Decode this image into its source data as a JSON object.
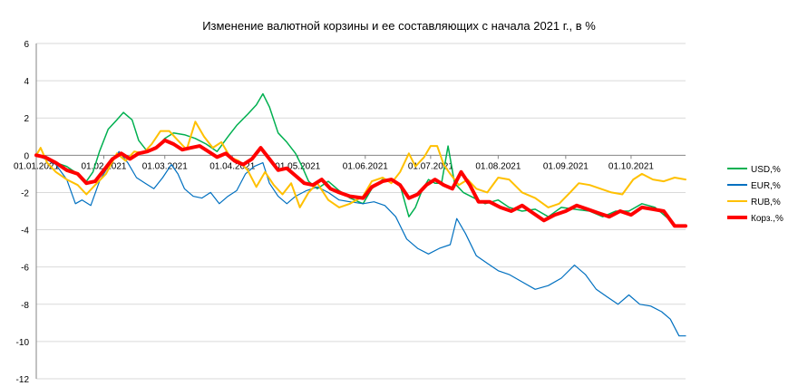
{
  "chart_data": {
    "type": "line",
    "title": "Изменение  валютной корзины и ее составляющих  с начала 2021 г., в %",
    "xlabel": "",
    "ylabel": "",
    "ylim": [
      -12,
      6
    ],
    "xlim": [
      "2021-01-01",
      "2021-10-26"
    ],
    "y_ticks": [
      6,
      4,
      2,
      0,
      -2,
      -4,
      -6,
      -8,
      -10,
      -12
    ],
    "x_ticks": [
      "01.01.2021",
      "01.02.2021",
      "01.03.2021",
      "01.04.2021",
      "01.05.2021",
      "01.06.2021",
      "01.07.2021",
      "01.08.2021",
      "01.09.2021",
      "01.10.2021"
    ],
    "x_tick_dates": [
      "2021-01-01",
      "2021-02-01",
      "2021-03-01",
      "2021-04-01",
      "2021-05-01",
      "2021-06-01",
      "2021-07-01",
      "2021-08-01",
      "2021-09-01",
      "2021-10-01"
    ],
    "grid": "horizontal",
    "legend_position": "right",
    "series": [
      {
        "name": "USD,%",
        "color": "#00B050",
        "points": [
          [
            "2021-01-01",
            0
          ],
          [
            "2021-01-05",
            -0.1
          ],
          [
            "2021-01-10",
            -0.4
          ],
          [
            "2021-01-15",
            -0.6
          ],
          [
            "2021-01-20",
            -1.0
          ],
          [
            "2021-01-24",
            -1.4
          ],
          [
            "2021-01-27",
            -0.9
          ],
          [
            "2021-01-30",
            0.2
          ],
          [
            "2021-02-03",
            1.4
          ],
          [
            "2021-02-07",
            1.9
          ],
          [
            "2021-02-10",
            2.3
          ],
          [
            "2021-02-14",
            1.9
          ],
          [
            "2021-02-17",
            0.8
          ],
          [
            "2021-02-21",
            0.2
          ],
          [
            "2021-02-25",
            0.4
          ],
          [
            "2021-03-01",
            0.9
          ],
          [
            "2021-03-05",
            1.2
          ],
          [
            "2021-03-10",
            1.1
          ],
          [
            "2021-03-15",
            0.9
          ],
          [
            "2021-03-20",
            0.6
          ],
          [
            "2021-03-25",
            0.2
          ],
          [
            "2021-03-30",
            1.0
          ],
          [
            "2021-04-03",
            1.6
          ],
          [
            "2021-04-08",
            2.2
          ],
          [
            "2021-04-12",
            2.7
          ],
          [
            "2021-04-15",
            3.3
          ],
          [
            "2021-04-18",
            2.6
          ],
          [
            "2021-04-22",
            1.2
          ],
          [
            "2021-04-26",
            0.7
          ],
          [
            "2021-04-30",
            0.1
          ],
          [
            "2021-05-03",
            -0.6
          ],
          [
            "2021-05-06",
            -1.4
          ],
          [
            "2021-05-10",
            -1.8
          ],
          [
            "2021-05-15",
            -1.4
          ],
          [
            "2021-05-20",
            -1.9
          ],
          [
            "2021-05-25",
            -2.3
          ],
          [
            "2021-05-31",
            -2.6
          ],
          [
            "2021-06-04",
            -1.8
          ],
          [
            "2021-06-09",
            -1.3
          ],
          [
            "2021-06-13",
            -1.3
          ],
          [
            "2021-06-17",
            -1.6
          ],
          [
            "2021-06-21",
            -3.3
          ],
          [
            "2021-06-24",
            -2.8
          ],
          [
            "2021-06-27",
            -1.9
          ],
          [
            "2021-06-30",
            -1.3
          ],
          [
            "2021-07-03",
            -1.5
          ],
          [
            "2021-07-06",
            -1.5
          ],
          [
            "2021-07-09",
            0.5
          ],
          [
            "2021-07-12",
            -1.5
          ],
          [
            "2021-07-16",
            -2.0
          ],
          [
            "2021-07-21",
            -2.3
          ],
          [
            "2021-07-26",
            -2.6
          ],
          [
            "2021-08-01",
            -2.4
          ],
          [
            "2021-08-06",
            -2.8
          ],
          [
            "2021-08-12",
            -3.0
          ],
          [
            "2021-08-18",
            -2.9
          ],
          [
            "2021-08-24",
            -3.3
          ],
          [
            "2021-08-30",
            -2.8
          ],
          [
            "2021-09-05",
            -2.9
          ],
          [
            "2021-09-12",
            -3.0
          ],
          [
            "2021-09-18",
            -3.3
          ],
          [
            "2021-09-24",
            -3.0
          ],
          [
            "2021-09-30",
            -3.0
          ],
          [
            "2021-10-06",
            -2.6
          ],
          [
            "2021-10-12",
            -2.8
          ],
          [
            "2021-10-18",
            -3.4
          ],
          [
            "2021-10-21",
            -3.8
          ],
          [
            "2021-10-26",
            -3.8
          ]
        ]
      },
      {
        "name": "EUR,%",
        "color": "#0070C0",
        "points": [
          [
            "2021-01-01",
            0
          ],
          [
            "2021-01-05",
            -0.2
          ],
          [
            "2021-01-10",
            -0.5
          ],
          [
            "2021-01-15",
            -1.3
          ],
          [
            "2021-01-19",
            -2.6
          ],
          [
            "2021-01-22",
            -2.4
          ],
          [
            "2021-01-26",
            -2.7
          ],
          [
            "2021-01-30",
            -1.4
          ],
          [
            "2021-02-04",
            -0.4
          ],
          [
            "2021-02-08",
            0.2
          ],
          [
            "2021-02-12",
            -0.4
          ],
          [
            "2021-02-16",
            -1.2
          ],
          [
            "2021-02-20",
            -1.5
          ],
          [
            "2021-02-24",
            -1.8
          ],
          [
            "2021-02-28",
            -1.2
          ],
          [
            "2021-03-04",
            -0.5
          ],
          [
            "2021-03-07",
            -1.0
          ],
          [
            "2021-03-10",
            -1.8
          ],
          [
            "2021-03-14",
            -2.2
          ],
          [
            "2021-03-18",
            -2.3
          ],
          [
            "2021-03-22",
            -2.0
          ],
          [
            "2021-03-26",
            -2.6
          ],
          [
            "2021-03-30",
            -2.2
          ],
          [
            "2021-04-03",
            -1.9
          ],
          [
            "2021-04-07",
            -1.0
          ],
          [
            "2021-04-11",
            -0.6
          ],
          [
            "2021-04-15",
            -0.4
          ],
          [
            "2021-04-18",
            -1.5
          ],
          [
            "2021-04-22",
            -2.2
          ],
          [
            "2021-04-26",
            -2.6
          ],
          [
            "2021-04-30",
            -2.2
          ],
          [
            "2021-05-05",
            -1.9
          ],
          [
            "2021-05-10",
            -1.7
          ],
          [
            "2021-05-15",
            -2.0
          ],
          [
            "2021-05-20",
            -2.4
          ],
          [
            "2021-05-25",
            -2.5
          ],
          [
            "2021-05-31",
            -2.6
          ],
          [
            "2021-06-05",
            -2.5
          ],
          [
            "2021-06-10",
            -2.7
          ],
          [
            "2021-06-15",
            -3.3
          ],
          [
            "2021-06-20",
            -4.5
          ],
          [
            "2021-06-25",
            -5.0
          ],
          [
            "2021-06-30",
            -5.3
          ],
          [
            "2021-07-05",
            -5.0
          ],
          [
            "2021-07-10",
            -4.8
          ],
          [
            "2021-07-13",
            -3.4
          ],
          [
            "2021-07-17",
            -4.2
          ],
          [
            "2021-07-22",
            -5.4
          ],
          [
            "2021-07-27",
            -5.8
          ],
          [
            "2021-08-01",
            -6.2
          ],
          [
            "2021-08-06",
            -6.4
          ],
          [
            "2021-08-12",
            -6.8
          ],
          [
            "2021-08-18",
            -7.2
          ],
          [
            "2021-08-24",
            -7.0
          ],
          [
            "2021-08-30",
            -6.6
          ],
          [
            "2021-09-05",
            -5.9
          ],
          [
            "2021-09-10",
            -6.4
          ],
          [
            "2021-09-15",
            -7.2
          ],
          [
            "2021-09-20",
            -7.6
          ],
          [
            "2021-09-25",
            -8.0
          ],
          [
            "2021-09-30",
            -7.5
          ],
          [
            "2021-10-05",
            -8.0
          ],
          [
            "2021-10-10",
            -8.1
          ],
          [
            "2021-10-15",
            -8.4
          ],
          [
            "2021-10-19",
            -8.8
          ],
          [
            "2021-10-23",
            -9.7
          ],
          [
            "2021-10-26",
            -9.7
          ]
        ]
      },
      {
        "name": "RUB,%",
        "color": "#FFC000",
        "points": [
          [
            "2021-01-01",
            0
          ],
          [
            "2021-01-03",
            0.4
          ],
          [
            "2021-01-06",
            -0.4
          ],
          [
            "2021-01-10",
            -0.9
          ],
          [
            "2021-01-15",
            -1.3
          ],
          [
            "2021-01-20",
            -1.6
          ],
          [
            "2021-01-24",
            -2.1
          ],
          [
            "2021-01-28",
            -1.6
          ],
          [
            "2021-02-02",
            -1.0
          ],
          [
            "2021-02-07",
            0.1
          ],
          [
            "2021-02-11",
            -0.3
          ],
          [
            "2021-02-15",
            0.2
          ],
          [
            "2021-02-19",
            0.1
          ],
          [
            "2021-02-23",
            0.6
          ],
          [
            "2021-02-27",
            1.3
          ],
          [
            "2021-03-03",
            1.3
          ],
          [
            "2021-03-07",
            0.8
          ],
          [
            "2021-03-11",
            0.3
          ],
          [
            "2021-03-15",
            1.8
          ],
          [
            "2021-03-19",
            1.0
          ],
          [
            "2021-03-23",
            0.4
          ],
          [
            "2021-03-27",
            0.7
          ],
          [
            "2021-03-31",
            -0.1
          ],
          [
            "2021-04-04",
            -0.3
          ],
          [
            "2021-04-08",
            -0.8
          ],
          [
            "2021-04-12",
            -1.7
          ],
          [
            "2021-04-16",
            -0.9
          ],
          [
            "2021-04-20",
            -1.6
          ],
          [
            "2021-04-24",
            -2.1
          ],
          [
            "2021-04-28",
            -1.5
          ],
          [
            "2021-05-02",
            -2.8
          ],
          [
            "2021-05-06",
            -2.0
          ],
          [
            "2021-05-10",
            -1.5
          ],
          [
            "2021-05-15",
            -2.4
          ],
          [
            "2021-05-20",
            -2.8
          ],
          [
            "2021-05-25",
            -2.6
          ],
          [
            "2021-05-31",
            -2.2
          ],
          [
            "2021-06-04",
            -1.4
          ],
          [
            "2021-06-09",
            -1.2
          ],
          [
            "2021-06-13",
            -1.5
          ],
          [
            "2021-06-17",
            -0.9
          ],
          [
            "2021-06-21",
            0.1
          ],
          [
            "2021-06-24",
            -0.6
          ],
          [
            "2021-06-28",
            -0.1
          ],
          [
            "2021-07-01",
            0.5
          ],
          [
            "2021-07-04",
            0.5
          ],
          [
            "2021-07-07",
            -0.5
          ],
          [
            "2021-07-10",
            -1.0
          ],
          [
            "2021-07-14",
            -1.6
          ],
          [
            "2021-07-18",
            -1.3
          ],
          [
            "2021-07-22",
            -1.8
          ],
          [
            "2021-07-27",
            -2.0
          ],
          [
            "2021-08-01",
            -1.2
          ],
          [
            "2021-08-06",
            -1.3
          ],
          [
            "2021-08-12",
            -2.0
          ],
          [
            "2021-08-18",
            -2.3
          ],
          [
            "2021-08-24",
            -2.8
          ],
          [
            "2021-08-29",
            -2.6
          ],
          [
            "2021-09-03",
            -2.0
          ],
          [
            "2021-09-07",
            -1.5
          ],
          [
            "2021-09-12",
            -1.6
          ],
          [
            "2021-09-17",
            -1.8
          ],
          [
            "2021-09-22",
            -2.0
          ],
          [
            "2021-09-27",
            -2.1
          ],
          [
            "2021-10-02",
            -1.3
          ],
          [
            "2021-10-06",
            -1.0
          ],
          [
            "2021-10-11",
            -1.3
          ],
          [
            "2021-10-16",
            -1.4
          ],
          [
            "2021-10-21",
            -1.2
          ],
          [
            "2021-10-26",
            -1.3
          ]
        ]
      },
      {
        "name": "Корз.,%",
        "color": "#FF0000",
        "points": [
          [
            "2021-01-01",
            0
          ],
          [
            "2021-01-05",
            -0.1
          ],
          [
            "2021-01-10",
            -0.4
          ],
          [
            "2021-01-15",
            -0.8
          ],
          [
            "2021-01-20",
            -1.0
          ],
          [
            "2021-01-24",
            -1.5
          ],
          [
            "2021-01-28",
            -1.4
          ],
          [
            "2021-02-01",
            -0.8
          ],
          [
            "2021-02-05",
            -0.2
          ],
          [
            "2021-02-09",
            0.1
          ],
          [
            "2021-02-13",
            -0.2
          ],
          [
            "2021-02-17",
            0.1
          ],
          [
            "2021-02-21",
            0.2
          ],
          [
            "2021-02-25",
            0.4
          ],
          [
            "2021-03-01",
            0.8
          ],
          [
            "2021-03-05",
            0.6
          ],
          [
            "2021-03-09",
            0.3
          ],
          [
            "2021-03-13",
            0.4
          ],
          [
            "2021-03-17",
            0.5
          ],
          [
            "2021-03-21",
            0.2
          ],
          [
            "2021-03-25",
            -0.1
          ],
          [
            "2021-03-29",
            0.1
          ],
          [
            "2021-04-02",
            -0.3
          ],
          [
            "2021-04-06",
            -0.5
          ],
          [
            "2021-04-10",
            -0.2
          ],
          [
            "2021-04-14",
            0.4
          ],
          [
            "2021-04-18",
            -0.2
          ],
          [
            "2021-04-22",
            -0.8
          ],
          [
            "2021-04-26",
            -0.7
          ],
          [
            "2021-04-30",
            -1.1
          ],
          [
            "2021-05-04",
            -1.5
          ],
          [
            "2021-05-08",
            -1.6
          ],
          [
            "2021-05-12",
            -1.3
          ],
          [
            "2021-05-16",
            -1.8
          ],
          [
            "2021-05-20",
            -2.0
          ],
          [
            "2021-05-25",
            -2.2
          ],
          [
            "2021-05-31",
            -2.3
          ],
          [
            "2021-06-04",
            -1.7
          ],
          [
            "2021-06-09",
            -1.4
          ],
          [
            "2021-06-13",
            -1.3
          ],
          [
            "2021-06-17",
            -1.6
          ],
          [
            "2021-06-21",
            -2.3
          ],
          [
            "2021-06-25",
            -2.1
          ],
          [
            "2021-06-29",
            -1.6
          ],
          [
            "2021-07-03",
            -1.3
          ],
          [
            "2021-07-07",
            -1.6
          ],
          [
            "2021-07-11",
            -1.8
          ],
          [
            "2021-07-15",
            -0.9
          ],
          [
            "2021-07-19",
            -1.6
          ],
          [
            "2021-07-23",
            -2.5
          ],
          [
            "2021-07-28",
            -2.5
          ],
          [
            "2021-08-02",
            -2.8
          ],
          [
            "2021-08-07",
            -3.0
          ],
          [
            "2021-08-12",
            -2.7
          ],
          [
            "2021-08-17",
            -3.1
          ],
          [
            "2021-08-22",
            -3.5
          ],
          [
            "2021-08-27",
            -3.2
          ],
          [
            "2021-09-01",
            -3.0
          ],
          [
            "2021-09-06",
            -2.7
          ],
          [
            "2021-09-11",
            -2.9
          ],
          [
            "2021-09-16",
            -3.1
          ],
          [
            "2021-09-21",
            -3.3
          ],
          [
            "2021-09-26",
            -3.0
          ],
          [
            "2021-10-01",
            -3.2
          ],
          [
            "2021-10-06",
            -2.8
          ],
          [
            "2021-10-11",
            -2.9
          ],
          [
            "2021-10-16",
            -3.0
          ],
          [
            "2021-10-21",
            -3.8
          ],
          [
            "2021-10-26",
            -3.8
          ]
        ]
      }
    ]
  }
}
